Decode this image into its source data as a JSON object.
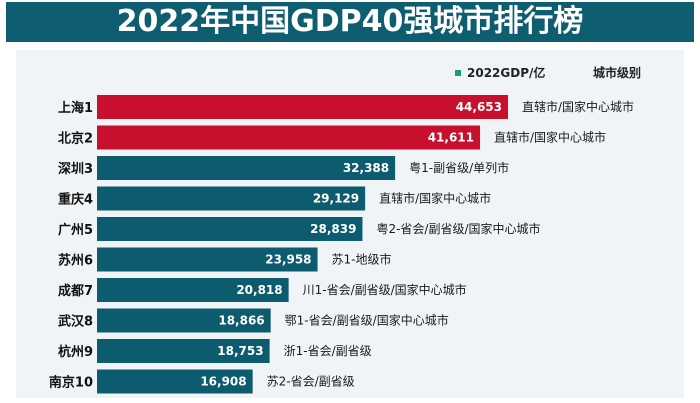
{
  "title": "2022年中国GDP40强城市排行榜",
  "legend": {
    "label": "2022GDP/亿",
    "color": "#1c9b74"
  },
  "level_header": "城市级别",
  "colors": {
    "top": "#c8102e",
    "default": "#0d5b6e",
    "title_bg": "#0f5d71",
    "panel_bg": "#f1f4f6"
  },
  "chart_data": {
    "type": "bar",
    "orientation": "horizontal",
    "title": "2022年中国GDP40强城市排行榜",
    "xlabel": "2022GDP/亿",
    "ylabel": "",
    "categories": [
      "上海1",
      "北京2",
      "深圳3",
      "重庆4",
      "广州5",
      "苏州6",
      "成都7",
      "武汉8",
      "杭州9",
      "南京10"
    ],
    "values": [
      44653,
      41611,
      32388,
      29129,
      28839,
      23958,
      20818,
      18866,
      18753,
      16908
    ],
    "value_labels": [
      "44,653",
      "41,611",
      "32,388",
      "29,129",
      "28,839",
      "23,958",
      "20,818",
      "18,866",
      "18,753",
      "16,908"
    ],
    "levels": [
      "直辖市/国家中心城市",
      "直辖市/国家中心城市",
      "粤1-副省级/单列市",
      "直辖市/国家中心城市",
      "粤2-省会/副省级/国家中心城市",
      "苏1-地级市",
      "川1-省会/副省级/国家中心城市",
      "鄂1-省会/副省级/国家中心城市",
      "浙1-省会/副省级",
      "苏2-省会/副省级"
    ],
    "bar_colors": [
      "#c8102e",
      "#c8102e",
      "#0d5b6e",
      "#0d5b6e",
      "#0d5b6e",
      "#0d5b6e",
      "#0d5b6e",
      "#0d5b6e",
      "#0d5b6e",
      "#0d5b6e"
    ]
  }
}
